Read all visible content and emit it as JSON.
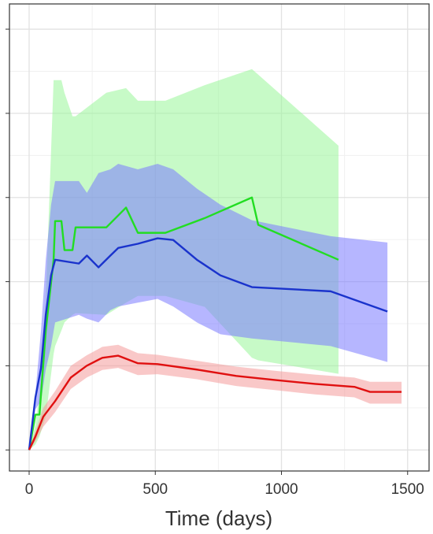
{
  "chart_data": {
    "type": "line",
    "xlabel": "Time (days)",
    "xlim": [
      -78,
      1585
    ],
    "ylim": [
      -0.5,
      10.6
    ],
    "xticks": [
      0,
      500,
      1000,
      1500
    ],
    "xminor": [
      250,
      750,
      1250
    ],
    "yticks": [
      0,
      2,
      4,
      6,
      8,
      10
    ],
    "yminor": [
      1,
      3,
      5,
      7,
      9
    ],
    "grid": true,
    "series": [
      {
        "color": "#22dd22",
        "band_color": "#99f599",
        "x": [
          0,
          25,
          41,
          66,
          97,
          103,
          128,
          140,
          172,
          184,
          306,
          384,
          431,
          540,
          696,
          883,
          908,
          1226
        ],
        "values": [
          0,
          0.84,
          0.84,
          2.84,
          4.52,
          5.44,
          5.44,
          4.75,
          4.75,
          5.29,
          5.29,
          5.76,
          5.16,
          5.16,
          5.51,
          6.0,
          5.35,
          4.52
        ],
        "upper": [
          0,
          0.6,
          1.35,
          3.6,
          8.79,
          8.79,
          8.79,
          8.49,
          7.93,
          7.93,
          8.49,
          8.6,
          8.3,
          8.3,
          8.67,
          9.05,
          8.92,
          7.23
        ],
        "lower": [
          0,
          0.13,
          0.32,
          0.79,
          2.28,
          2.47,
          2.84,
          3.03,
          3.21,
          3.25,
          3.21,
          3.5,
          3.66,
          3.66,
          3.4,
          2.19,
          2.13,
          1.81
        ]
      },
      {
        "color": "#1a33cc",
        "band_color": "#7a7aff",
        "x": [
          0,
          25,
          47,
          66,
          87,
          103,
          197,
          229,
          275,
          322,
          353,
          431,
          509,
          571,
          665,
          758,
          883,
          1195,
          1420
        ],
        "values": [
          0,
          1.25,
          1.94,
          3.21,
          4.15,
          4.52,
          4.43,
          4.62,
          4.34,
          4.62,
          4.8,
          4.9,
          5.03,
          4.99,
          4.52,
          4.15,
          3.87,
          3.77,
          3.29
        ],
        "upper": [
          0,
          1.35,
          2.84,
          4.52,
          5.83,
          6.39,
          6.39,
          6.11,
          6.58,
          6.67,
          6.8,
          6.67,
          6.8,
          6.67,
          6.21,
          5.83,
          5.46,
          5.08,
          4.93
        ],
        "lower": [
          0,
          0.97,
          1.16,
          1.91,
          2.47,
          3.03,
          3.21,
          3.12,
          3.03,
          3.32,
          3.41,
          3.5,
          3.59,
          3.41,
          3.03,
          2.75,
          2.65,
          2.47,
          2.09
        ]
      },
      {
        "color": "#e01010",
        "band_color": "#f49a9a",
        "x": [
          0,
          25,
          56,
          103,
          165,
          228,
          290,
          353,
          431,
          509,
          665,
          821,
          977,
          1133,
          1289,
          1351,
          1476
        ],
        "values": [
          0,
          0.32,
          0.79,
          1.16,
          1.72,
          2.0,
          2.19,
          2.24,
          2.06,
          2.04,
          1.91,
          1.76,
          1.66,
          1.57,
          1.5,
          1.38,
          1.38
        ],
        "upper": [
          0,
          0.45,
          1.0,
          1.4,
          2.0,
          2.25,
          2.45,
          2.5,
          2.3,
          2.26,
          2.12,
          1.98,
          1.88,
          1.79,
          1.72,
          1.62,
          1.62
        ],
        "lower": [
          0,
          0.2,
          0.55,
          0.9,
          1.45,
          1.72,
          1.9,
          1.95,
          1.78,
          1.8,
          1.68,
          1.52,
          1.42,
          1.32,
          1.25,
          1.1,
          1.1
        ]
      }
    ]
  }
}
